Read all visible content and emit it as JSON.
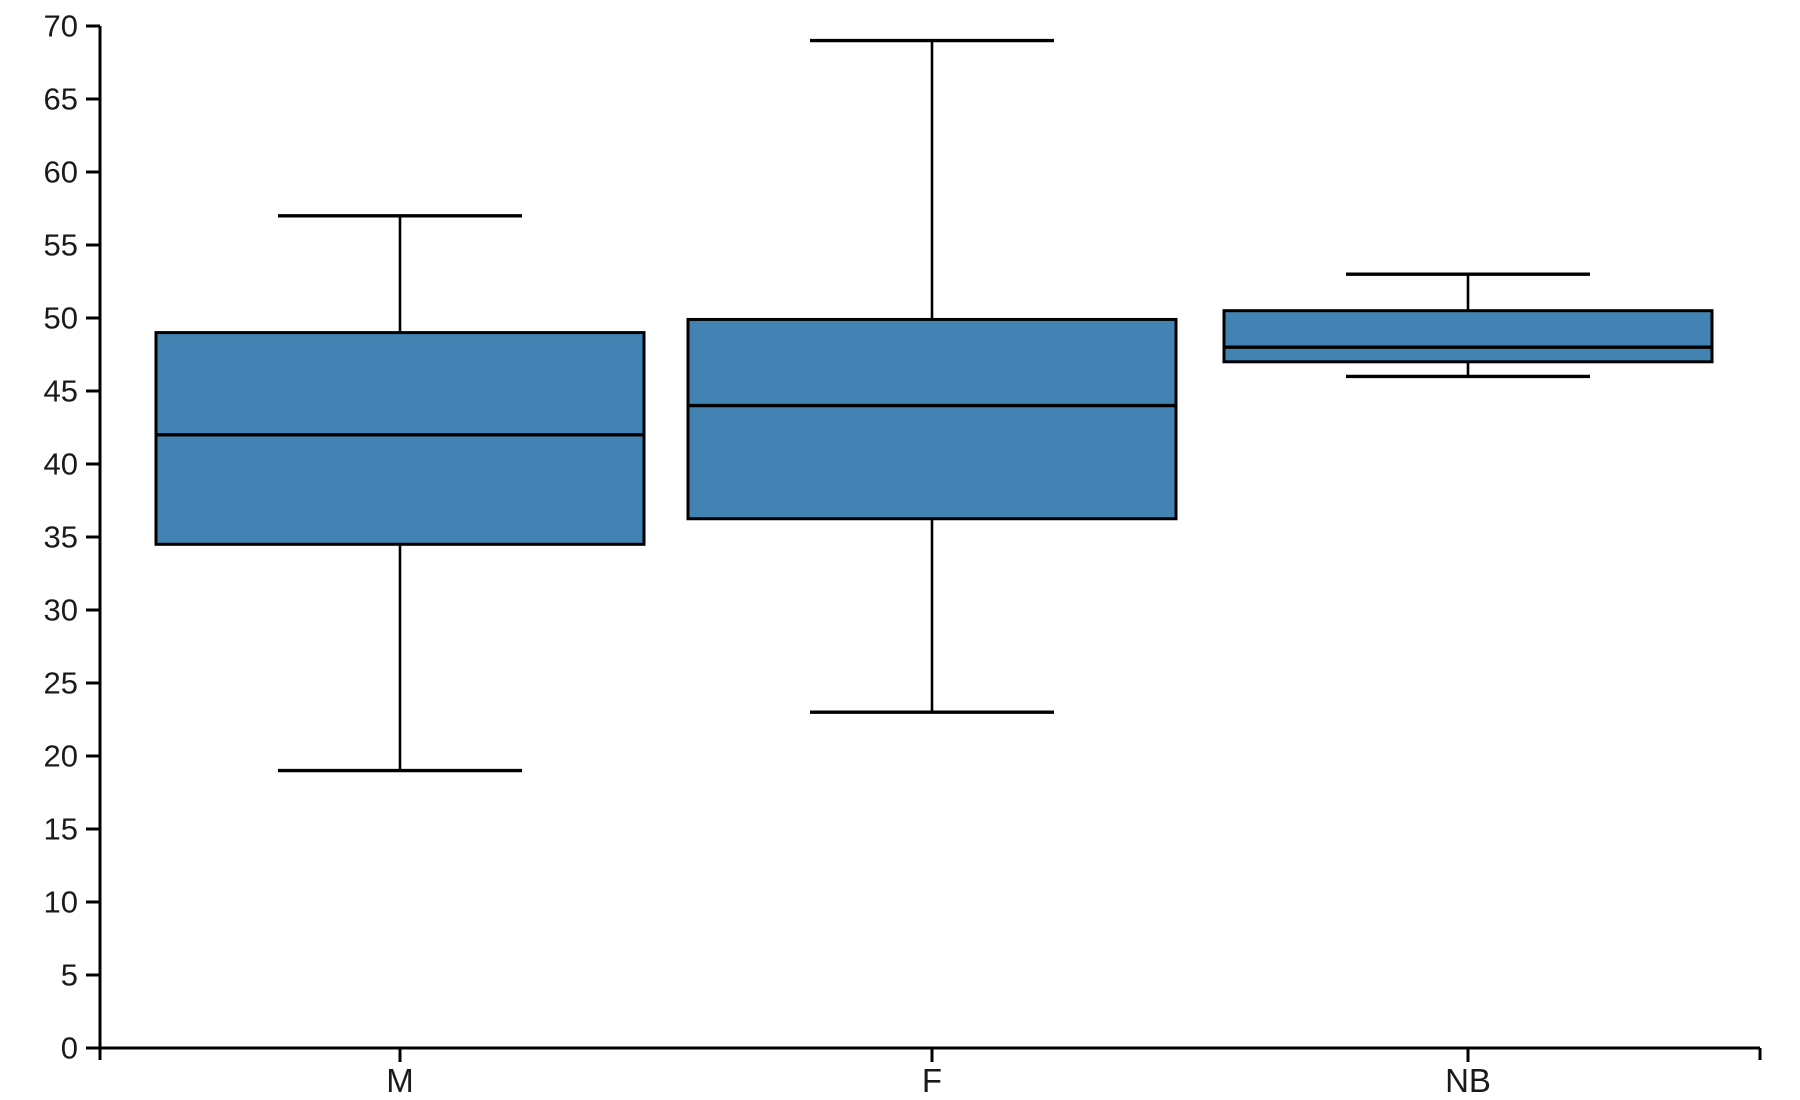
{
  "chart_data": {
    "type": "box",
    "title": "",
    "xlabel": "",
    "ylabel": "",
    "categories": [
      "M",
      "F",
      "NB"
    ],
    "series": [
      {
        "category": "M",
        "min": 19,
        "q1": 34.5,
        "median": 42,
        "q3": 49,
        "max": 57
      },
      {
        "category": "F",
        "min": 23,
        "q1": 36.25,
        "median": 44,
        "q3": 49.9,
        "max": 69
      },
      {
        "category": "NB",
        "min": 46,
        "q1": 47,
        "median": 48,
        "q3": 50.5,
        "max": 53
      }
    ],
    "ylim": [
      0,
      70
    ],
    "ytick_step": 5,
    "yticks": [
      0,
      5,
      10,
      15,
      20,
      25,
      30,
      35,
      40,
      45,
      50,
      55,
      60,
      65,
      70
    ],
    "grid": false,
    "legend": "none",
    "colors": {
      "box_fill": "#4383b4",
      "box_edge": "#000000",
      "whisker": "#000000",
      "axis": "#000000",
      "text": "#1a1a1a",
      "background": "#ffffff"
    }
  }
}
